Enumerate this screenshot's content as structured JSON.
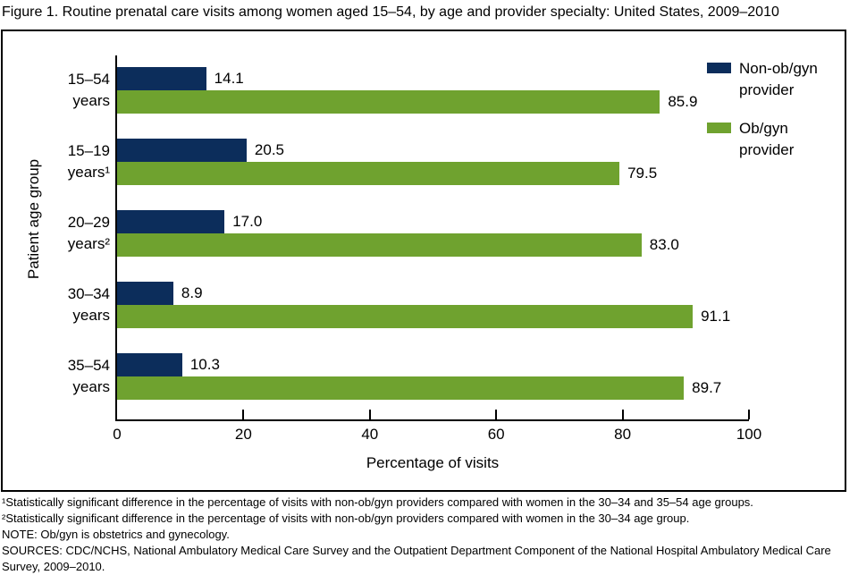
{
  "chart_data": {
    "type": "bar",
    "orientation": "horizontal",
    "title": "Figure 1. Routine prenatal care visits among women aged 15–54, by age and provider specialty: United States, 2009–2010",
    "categories": [
      "15–54\nyears",
      "15–19\nyears¹",
      "20–29\nyears²",
      "30–34\nyears",
      "35–54\nyears"
    ],
    "series": [
      {
        "id": "non-obgyn",
        "name": "Non-ob/gyn provider",
        "color": "#0c2d5b",
        "values": [
          14.1,
          20.5,
          17.0,
          8.9,
          10.3
        ]
      },
      {
        "id": "obgyn",
        "name": "Ob/gyn provider",
        "color": "#6fa22f",
        "values": [
          85.9,
          79.5,
          83.0,
          91.1,
          89.7
        ]
      }
    ],
    "xlabel": "Percentage of visits",
    "ylabel": "Patient age group",
    "xlim": [
      0,
      100
    ],
    "xticks": [
      0,
      20,
      40,
      60,
      80,
      100
    ],
    "grid": false,
    "value_labels": true,
    "legend_position": "top-right"
  },
  "footnotes": [
    "¹Statistically significant difference in the percentage of visits with non-ob/gyn providers compared with women in the 30–34 and 35–54 age groups.",
    "²Statistically significant difference in the percentage of visits with non-ob/gyn providers compared with women in the 30–34 age group.",
    "NOTE: Ob/gyn is obstetrics and gynecology.",
    "SOURCES: CDC/NCHS, National Ambulatory Medical Care Survey and the Outpatient Department Component of the National Hospital Ambulatory Medical Care Survey, 2009–2010."
  ]
}
